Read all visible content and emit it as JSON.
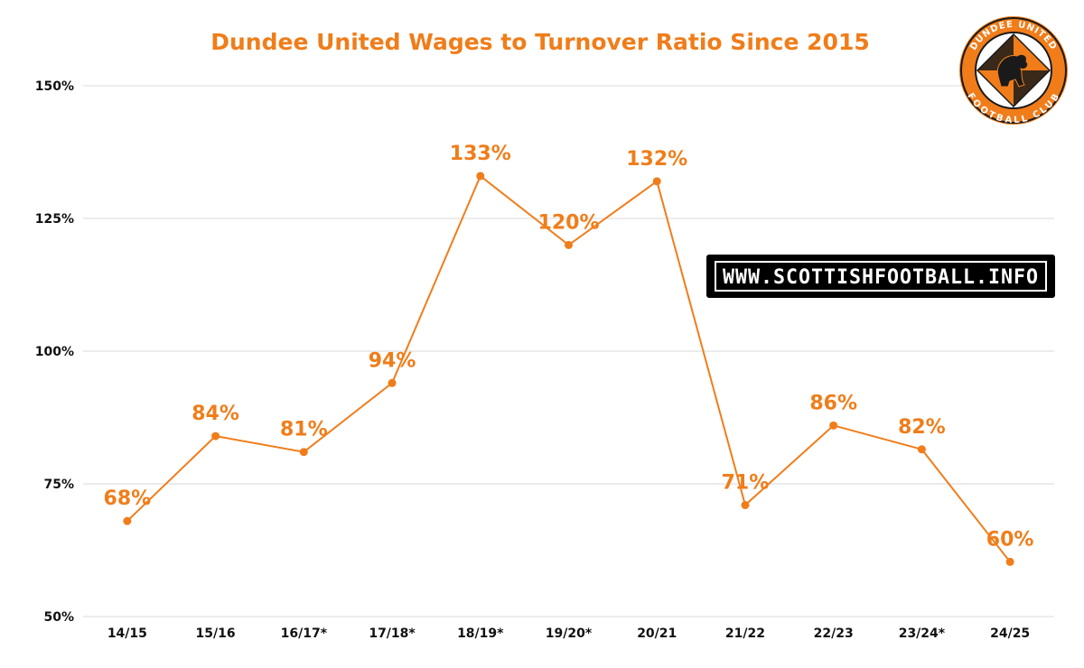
{
  "colors": {
    "accent": "#f07d1a",
    "grid": "#d9d9d9",
    "text": "#111111",
    "watermark_bg": "#000000",
    "badge_orange": "#f07d1a",
    "badge_dark": "#1a1a1a"
  },
  "watermark": {
    "text": "WWW.SCOTTISHFOOTBALL.INFO"
  },
  "badge": {
    "top_text": "DUNDEE UNITED",
    "bottom_text": "FOOTBALL CLUB",
    "icon": "lion-crest-icon"
  },
  "chart_data": {
    "type": "line",
    "title": "Dundee United Wages to Turnover Ratio Since 2015",
    "xlabel": "",
    "ylabel": "",
    "categories": [
      "14/15",
      "15/16",
      "16/17*",
      "17/18*",
      "18/19*",
      "19/20*",
      "20/21",
      "21/22",
      "22/23",
      "23/24*",
      "24/25"
    ],
    "series": [
      {
        "name": "Wages to Turnover Ratio",
        "values": [
          68,
          84,
          81,
          94,
          133,
          120,
          132,
          71,
          86,
          81.5,
          60.3
        ],
        "labels": [
          "68%",
          "84%",
          "81%",
          "94%",
          "133%",
          "120%",
          "132%",
          "71%",
          "86%",
          "82%",
          "60%"
        ]
      }
    ],
    "ylim": [
      50,
      150
    ],
    "yticks": [
      50,
      75,
      100,
      125,
      150
    ],
    "ytick_labels": [
      "50%",
      "75%",
      "100%",
      "125%",
      "150%"
    ],
    "grid": true,
    "legend": "none"
  }
}
